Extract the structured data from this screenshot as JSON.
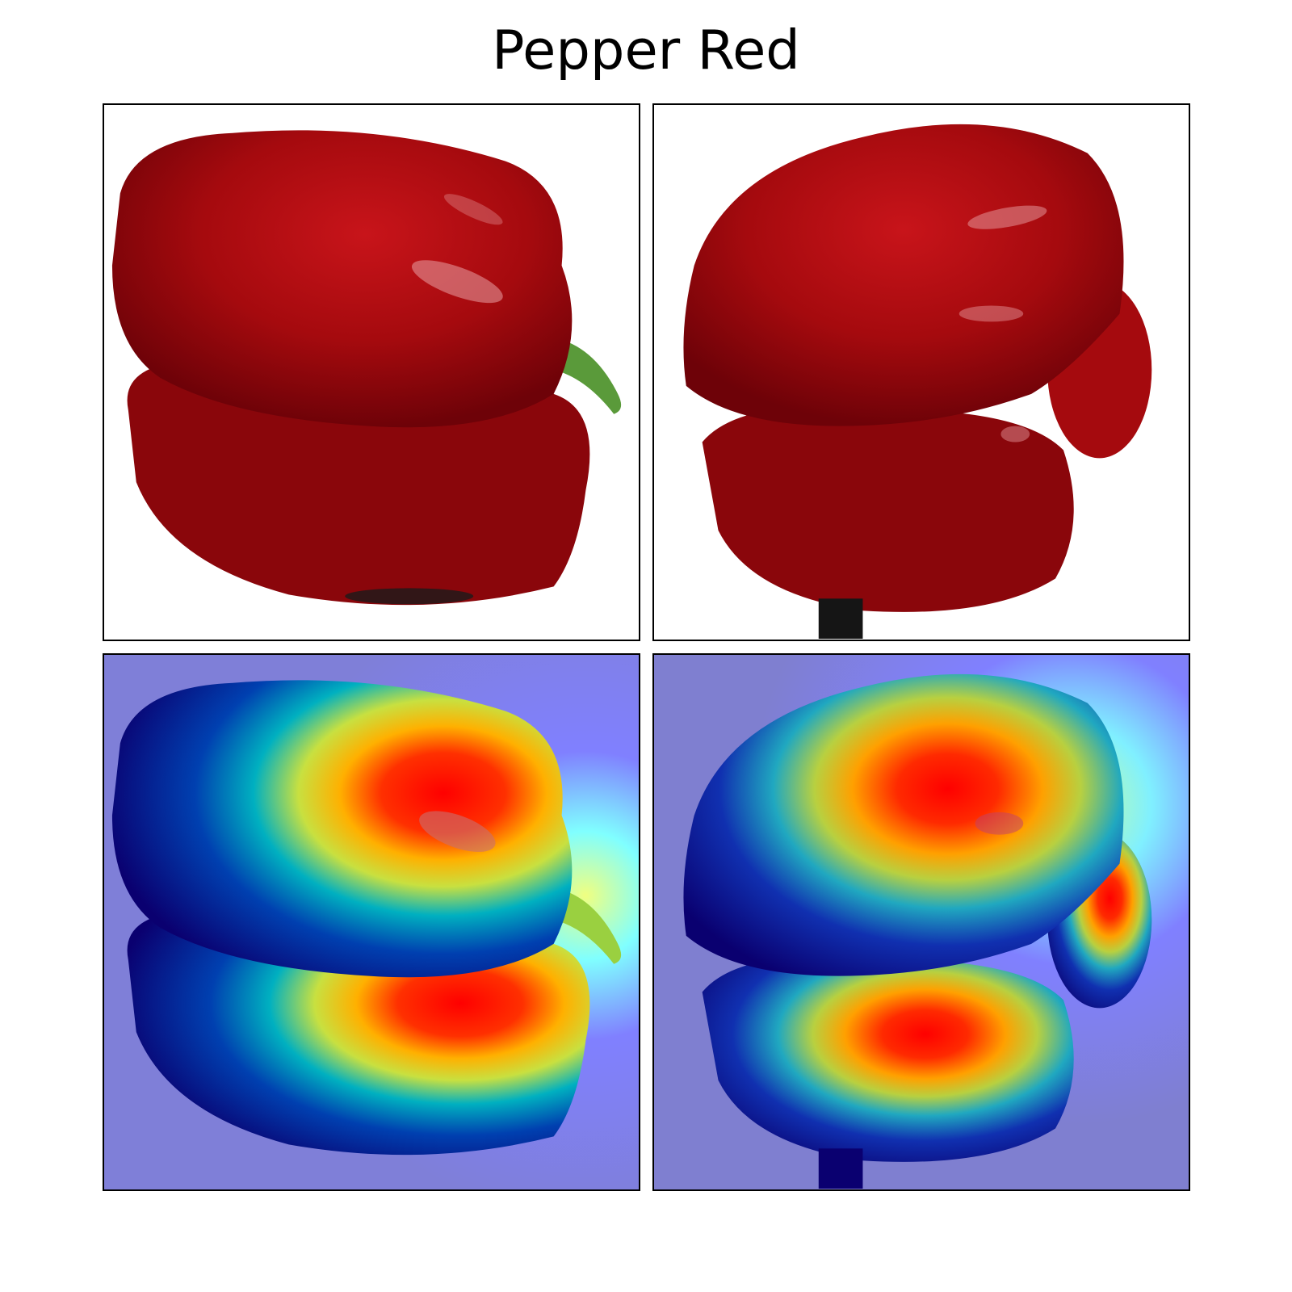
{
  "figure": {
    "title": "Pepper Red",
    "panels": [
      {
        "row": "top",
        "col": "left",
        "kind": "photo",
        "subject": "red-bell-pepper-view-1"
      },
      {
        "row": "top",
        "col": "right",
        "kind": "photo",
        "subject": "red-bell-pepper-view-2"
      },
      {
        "row": "bottom",
        "col": "left",
        "kind": "heatmap-overlay",
        "subject": "red-bell-pepper-view-1"
      },
      {
        "row": "bottom",
        "col": "right",
        "kind": "heatmap-overlay",
        "subject": "red-bell-pepper-view-2"
      }
    ],
    "colors": {
      "pepper_red": "#a50a0e",
      "pepper_dark": "#6e0208",
      "stem_green": "#5a9a3a",
      "heatmap_low": "#00007f",
      "heatmap_mid": "#00e0ff",
      "heatmap_high": "#ff0000",
      "overlay_background": "#7f7fe6"
    }
  }
}
